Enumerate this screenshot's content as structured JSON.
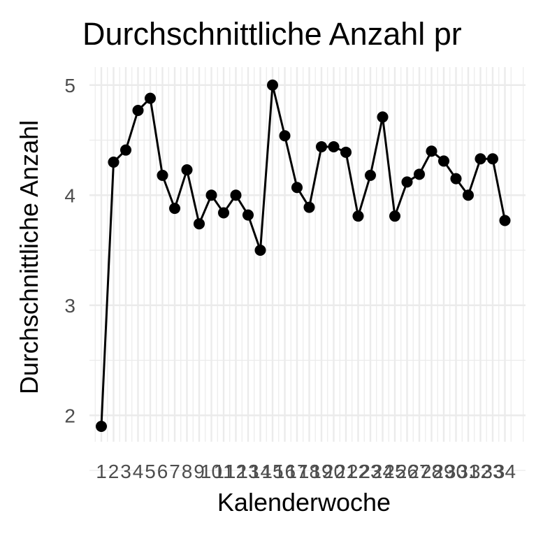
{
  "chart_data": {
    "type": "line",
    "title": "Durchschnittliche Anzahl pr",
    "xlabel": "Kalenderwoche",
    "ylabel": "Durchschnittliche Anzahl",
    "x": [
      "1",
      "2",
      "3",
      "4",
      "5",
      "6",
      "7",
      "8",
      "9",
      "10",
      "11",
      "12",
      "13",
      "14",
      "15",
      "16",
      "17",
      "18",
      "19",
      "20",
      "21",
      "22",
      "23",
      "24",
      "25",
      "26",
      "27",
      "28",
      "29",
      "30",
      "31",
      "32",
      "33",
      "34"
    ],
    "values": [
      1.9,
      4.3,
      4.41,
      4.77,
      4.88,
      4.18,
      3.88,
      4.23,
      3.74,
      4.0,
      3.84,
      4.0,
      3.82,
      3.5,
      5.0,
      4.54,
      4.07,
      3.89,
      4.44,
      4.44,
      4.39,
      3.81,
      4.18,
      4.71,
      3.81,
      4.12,
      4.19,
      4.4,
      4.31,
      4.15,
      4.0,
      4.33,
      4.33,
      3.77
    ],
    "yticks": [
      2,
      3,
      4,
      5
    ],
    "ylim": [
      1.8,
      5.1
    ],
    "grid": true,
    "legend": "none",
    "color": "#000000"
  }
}
